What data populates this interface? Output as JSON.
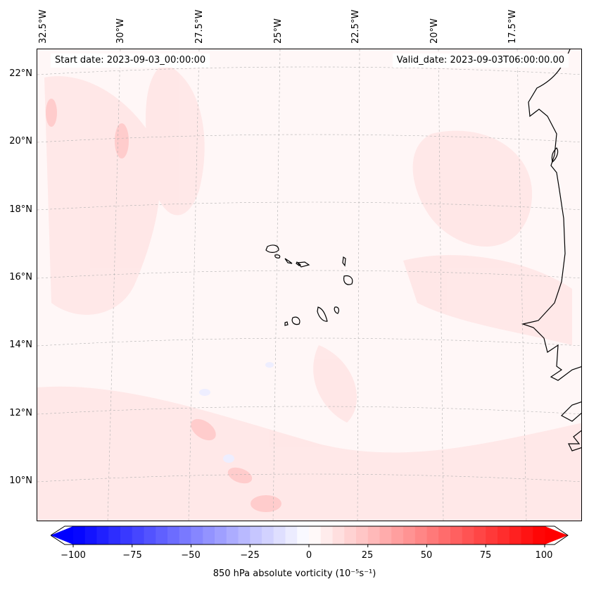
{
  "header": {
    "start_date": "Start date: 2023-09-03_00:00:00",
    "valid_date": "Valid_date: 2023-09-03T06:00:00.00"
  },
  "map": {
    "projection": "lambert-conformal",
    "background_color": "#fff7f7",
    "coastline_color": "#000000",
    "gridline_style": "dashed-grey",
    "lon_labels": [
      "32.5°W",
      "30°W",
      "27.5°W",
      "25°W",
      "22.5°W",
      "20°W",
      "17.5°W"
    ],
    "lat_labels": [
      "22°N",
      "20°N",
      "18°N",
      "16°N",
      "14°N",
      "12°N",
      "10°N"
    ],
    "features": [
      "Cape Verde Islands",
      "West African coastline"
    ]
  },
  "colorbar": {
    "ticks": [
      "−100",
      "−75",
      "−50",
      "−25",
      "0",
      "25",
      "50",
      "75",
      "100"
    ],
    "min": -100,
    "max": 100,
    "colormap": "bwr",
    "low_color": "#0000ff",
    "mid_color": "#ffffff",
    "high_color": "#ff0000",
    "extend": "both",
    "label": "850 hPa absolute vorticity (10⁻⁵s⁻¹)"
  }
}
